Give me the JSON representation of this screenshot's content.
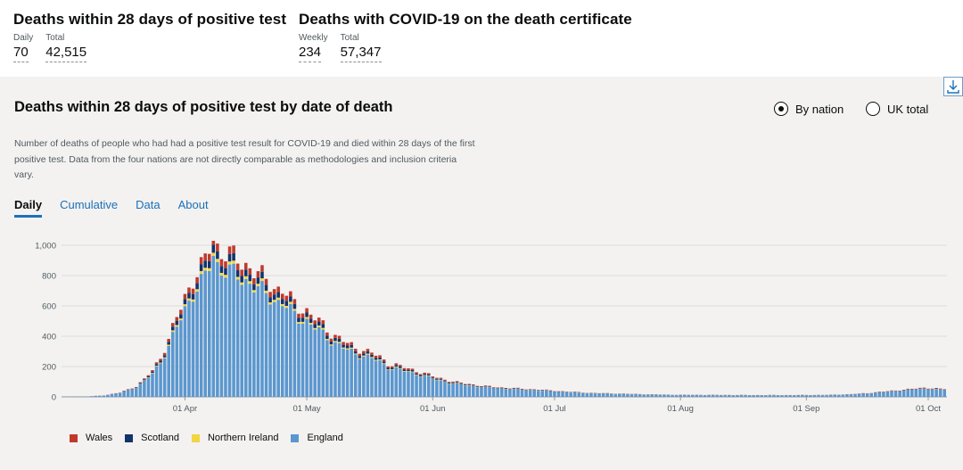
{
  "header": {
    "deaths28": {
      "title": "Deaths within 28 days of positive test",
      "daily_label": "Daily",
      "daily_value": "70",
      "total_label": "Total",
      "total_value": "42,515"
    },
    "certificate": {
      "title": "Deaths with COVID-19 on the death certificate",
      "weekly_label": "Weekly",
      "weekly_value": "234",
      "total_label": "Total",
      "total_value": "57,347"
    }
  },
  "card": {
    "title": "Deaths within 28 days of positive test by date of death",
    "radio": {
      "by_nation": "By nation",
      "uk_total": "UK total",
      "selected": "by_nation"
    },
    "description": "Number of deaths of people who had had a positive test result for COVID-19 and died within 28 days of the first positive test. Data from the four nations are not directly comparable as methodologies and inclusion criteria vary.",
    "tabs": [
      "Daily",
      "Cumulative",
      "Data",
      "About"
    ],
    "active_tab": "Daily"
  },
  "colors": {
    "wales": "#c03a2b",
    "scotland": "#12336b",
    "ni": "#f2d541",
    "england": "#5b97cf",
    "accent": "#1d70b8"
  },
  "chart_data": {
    "type": "bar",
    "stacked": true,
    "title": "Deaths within 28 days of positive test by date of death",
    "xlabel": "",
    "ylabel": "",
    "ylim": [
      0,
      1000
    ],
    "yticks": [
      "0",
      "200",
      "400",
      "600",
      "800",
      "1,000"
    ],
    "xticks": [
      "01 Apr",
      "01 May",
      "01 Jun",
      "01 Jul",
      "01 Aug",
      "01 Sep",
      "01 Oct"
    ],
    "xtick_day_index": [
      30,
      60,
      91,
      121,
      152,
      183,
      213
    ],
    "start_date": "02 Mar",
    "totals_anchor": [
      [
        0,
        1
      ],
      [
        6,
        3
      ],
      [
        10,
        10
      ],
      [
        14,
        28
      ],
      [
        18,
        70
      ],
      [
        20,
        115
      ],
      [
        22,
        175
      ],
      [
        24,
        260
      ],
      [
        26,
        380
      ],
      [
        28,
        520
      ],
      [
        30,
        660
      ],
      [
        32,
        780
      ],
      [
        34,
        850
      ],
      [
        35,
        900
      ],
      [
        36,
        980
      ],
      [
        37,
        1065
      ],
      [
        38,
        990
      ],
      [
        39,
        960
      ],
      [
        40,
        950
      ],
      [
        42,
        920
      ],
      [
        44,
        880
      ],
      [
        46,
        860
      ],
      [
        48,
        810
      ],
      [
        50,
        770
      ],
      [
        52,
        720
      ],
      [
        54,
        710
      ],
      [
        56,
        640
      ],
      [
        58,
        590
      ],
      [
        60,
        570
      ],
      [
        62,
        520
      ],
      [
        64,
        470
      ],
      [
        66,
        420
      ],
      [
        68,
        390
      ],
      [
        70,
        350
      ],
      [
        72,
        320
      ],
      [
        74,
        310
      ],
      [
        76,
        290
      ],
      [
        78,
        260
      ],
      [
        80,
        220
      ],
      [
        82,
        210
      ],
      [
        85,
        185
      ],
      [
        88,
        165
      ],
      [
        91,
        135
      ],
      [
        94,
        115
      ],
      [
        97,
        95
      ],
      [
        100,
        85
      ],
      [
        104,
        70
      ],
      [
        108,
        62
      ],
      [
        112,
        55
      ],
      [
        116,
        50
      ],
      [
        120,
        42
      ],
      [
        124,
        35
      ],
      [
        130,
        26
      ],
      [
        136,
        22
      ],
      [
        142,
        18
      ],
      [
        150,
        14
      ],
      [
        160,
        13
      ],
      [
        170,
        12
      ],
      [
        180,
        12
      ],
      [
        188,
        13
      ],
      [
        194,
        18
      ],
      [
        198,
        25
      ],
      [
        202,
        35
      ],
      [
        206,
        45
      ],
      [
        208,
        50
      ],
      [
        210,
        55
      ],
      [
        212,
        60
      ],
      [
        214,
        58
      ],
      [
        216,
        52
      ]
    ],
    "share": {
      "england": 0.88,
      "scotland": 0.05,
      "wales": 0.05,
      "ni": 0.02
    },
    "series": [
      {
        "name": "Wales",
        "key": "wales"
      },
      {
        "name": "Scotland",
        "key": "scotland"
      },
      {
        "name": "Northern Ireland",
        "key": "ni"
      },
      {
        "name": "England",
        "key": "england"
      }
    ]
  }
}
